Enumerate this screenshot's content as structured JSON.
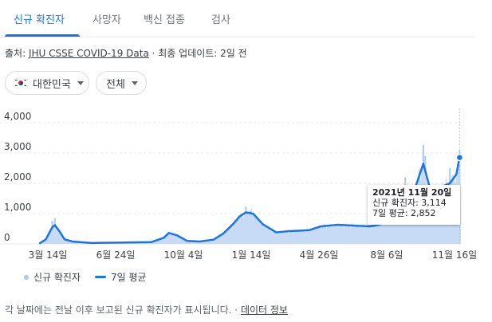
{
  "tabs": [
    {
      "label": "신규 확진자",
      "active": true
    },
    {
      "label": "사망자",
      "active": false
    },
    {
      "label": "백신 접종",
      "active": false
    },
    {
      "label": "검사",
      "active": false
    }
  ],
  "source": {
    "prefix": "출처:",
    "link": "JHU CSSE COVID-19 Data",
    "suffix": "· 최종 업데이트: 2일 전"
  },
  "filters": {
    "region": "대한민국",
    "period": "전체"
  },
  "colors": {
    "accent": "#1a73e8",
    "bars": "#a6c8f3",
    "area": "#c7dbf7"
  },
  "tooltip": {
    "title": "2021년 11월 20일",
    "line1": "신규 확진자: 3,114",
    "line2": "7일 평균: 2,852"
  },
  "legend": {
    "bars": "신규 확진자",
    "line": "7일 평균"
  },
  "footer": {
    "text": "각 날짜에는 전날 이후 보고된 신규 확진자가 표시됩니다.",
    "sep": "·",
    "link": "데이터 정보"
  },
  "chart_data": {
    "type": "area",
    "y_ticks": [
      "0",
      "1,000",
      "2,000",
      "3,000",
      "4,000"
    ],
    "ylim": [
      0,
      4000
    ],
    "x_ticks": [
      "3월 14일",
      "6월 24일",
      "10월 4일",
      "1월 14일",
      "4월 26일",
      "8월 6일",
      "11월 16일"
    ],
    "series": [
      {
        "name": "7일 평균",
        "x": [
          "2020-02-10",
          "2020-02-20",
          "2020-03-01",
          "2020-03-05",
          "2020-03-12",
          "2020-03-20",
          "2020-04-01",
          "2020-05-01",
          "2020-06-01",
          "2020-07-01",
          "2020-08-01",
          "2020-08-20",
          "2020-08-28",
          "2020-09-10",
          "2020-09-25",
          "2020-10-15",
          "2020-11-05",
          "2020-11-20",
          "2020-12-05",
          "2020-12-15",
          "2020-12-25",
          "2021-01-05",
          "2021-01-20",
          "2021-02-10",
          "2021-03-01",
          "2021-04-01",
          "2021-04-20",
          "2021-05-15",
          "2021-06-15",
          "2021-07-05",
          "2021-07-20",
          "2021-08-10",
          "2021-08-28",
          "2021-09-10",
          "2021-09-25",
          "2021-10-05",
          "2021-10-15",
          "2021-10-25",
          "2021-11-05",
          "2021-11-15",
          "2021-11-20"
        ],
        "values": [
          10,
          150,
          550,
          620,
          420,
          150,
          80,
          30,
          40,
          50,
          60,
          200,
          360,
          280,
          100,
          80,
          140,
          340,
          650,
          900,
          1040,
          1000,
          650,
          380,
          420,
          450,
          580,
          630,
          600,
          580,
          640,
          1400,
          1780,
          1700,
          2650,
          1850,
          1500,
          1900,
          2000,
          2300,
          2852
        ]
      },
      {
        "name": "신규 확진자",
        "x": [
          "2020-03-01",
          "2020-03-05",
          "2020-12-25",
          "2021-01-01",
          "2021-08-28",
          "2021-09-25",
          "2021-09-28",
          "2021-11-05",
          "2021-11-20"
        ],
        "values": [
          760,
          850,
          1230,
          1100,
          2200,
          3270,
          2900,
          2500,
          3114
        ]
      }
    ]
  }
}
